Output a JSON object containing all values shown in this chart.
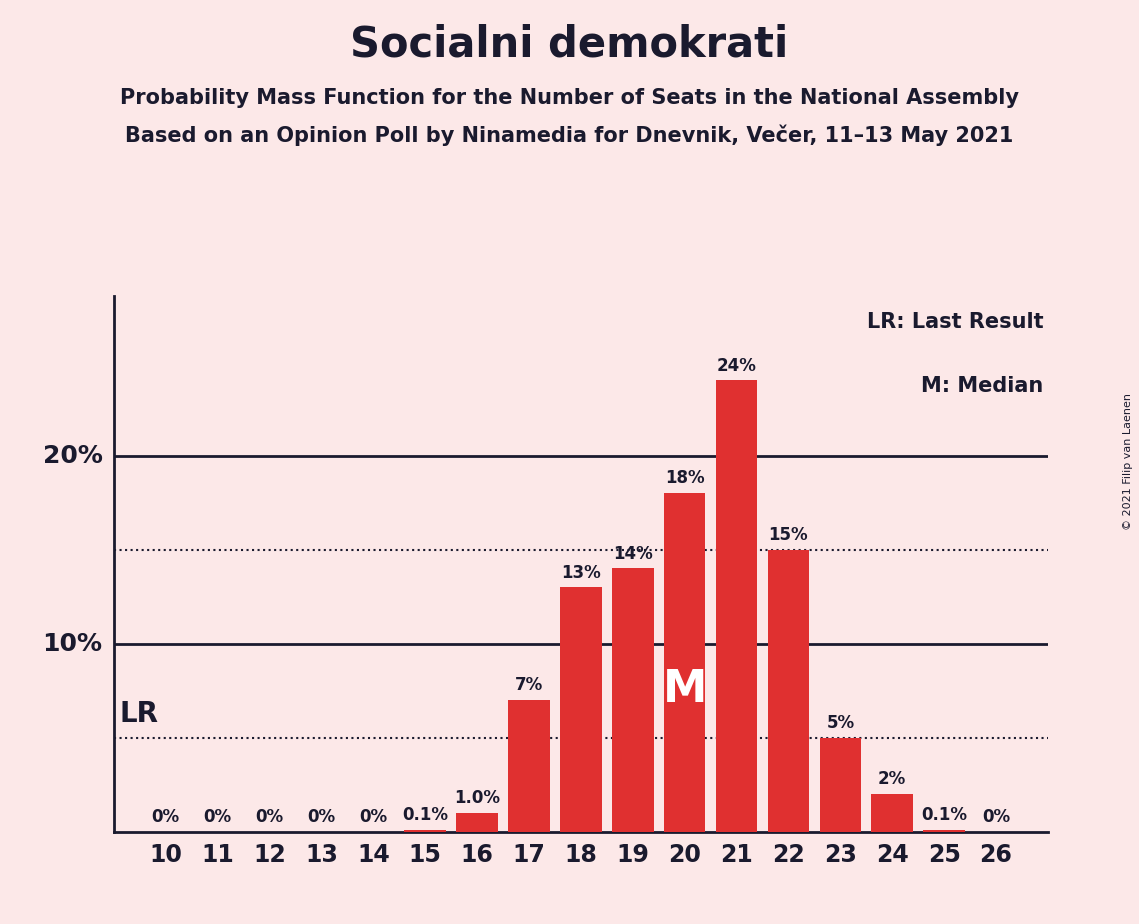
{
  "title": "Socialni demokrati",
  "subtitle1": "Probability Mass Function for the Number of Seats in the National Assembly",
  "subtitle2": "Based on an Opinion Poll by Ninamedia for Dnevnik, Večer, 11–13 May 2021",
  "copyright": "© 2021 Filip van Laenen",
  "seats": [
    10,
    11,
    12,
    13,
    14,
    15,
    16,
    17,
    18,
    19,
    20,
    21,
    22,
    23,
    24,
    25,
    26
  ],
  "probabilities": [
    0.0,
    0.0,
    0.0,
    0.0,
    0.0,
    0.001,
    0.01,
    0.07,
    0.13,
    0.14,
    0.18,
    0.24,
    0.15,
    0.05,
    0.02,
    0.001,
    0.0
  ],
  "bar_labels": [
    "0%",
    "0%",
    "0%",
    "0%",
    "0%",
    "0.1%",
    "1.0%",
    "7%",
    "13%",
    "14%",
    "18%",
    "24%",
    "15%",
    "5%",
    "2%",
    "0.1%",
    "0%"
  ],
  "bar_color": "#e03030",
  "background_color": "#fce8e8",
  "text_color": "#1a1a2e",
  "median_seat": 20,
  "lr_value": 0.05,
  "lr_label": "LR",
  "median_label": "M",
  "legend_lr": "LR: Last Result",
  "legend_m": "M: Median",
  "dotted_lines": [
    0.05,
    0.15
  ],
  "solid_lines": [
    0.1,
    0.2
  ],
  "ylim": [
    0,
    0.285
  ],
  "xlim": [
    9.0,
    27.0
  ]
}
